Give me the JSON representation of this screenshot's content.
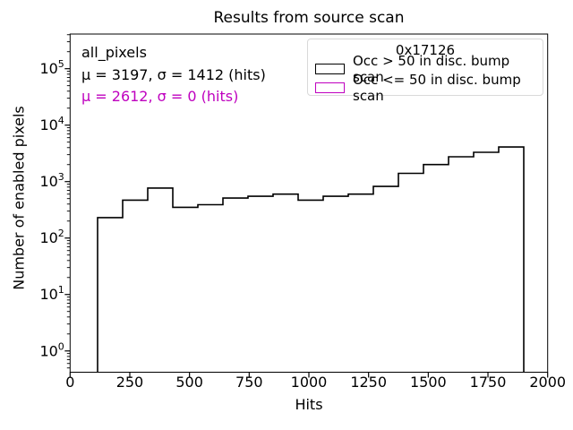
{
  "figure": {
    "title": "Results from source scan",
    "xlabel": "Hits",
    "ylabel": "Number of enabled pixels"
  },
  "annotations": {
    "dataset_label": "all_pixels",
    "stats_black": "μ = 3197, σ = 1412 (hits)",
    "stats_magenta": "μ = 2612, σ = 0 (hits)",
    "black_color": "#000000",
    "magenta_color": "#BF00BF"
  },
  "legend": {
    "title": "0x17126",
    "entries": [
      {
        "label": "Occ > 50 in disc. bump scan",
        "color": "#000000"
      },
      {
        "label": "Occ <= 50 in disc. bump scan",
        "color": "#BF00BF"
      }
    ]
  },
  "chart_data": {
    "type": "bar",
    "histtype": "step",
    "title": "Results from source scan",
    "xlabel": "Hits",
    "ylabel": "Number of enabled pixels",
    "yscale": "log",
    "grid": false,
    "legend_position": "upper right",
    "xlim": [
      0,
      2000
    ],
    "ylim": [
      0.42,
      411000
    ],
    "xticks": [
      0,
      250,
      500,
      750,
      1000,
      1250,
      1500,
      1750,
      2000
    ],
    "ytick_exponents": [
      0,
      1,
      2,
      3,
      4,
      5
    ],
    "series": [
      {
        "name": "Occ > 50 in disc. bump scan",
        "color": "#000000",
        "bin_edges": [
          115,
          220,
          325,
          430,
          535,
          640,
          745,
          850,
          955,
          1060,
          1165,
          1270,
          1375,
          1480,
          1585,
          1690,
          1795,
          1900
        ],
        "counts": [
          230,
          470,
          770,
          350,
          390,
          510,
          550,
          600,
          470,
          550,
          600,
          820,
          1400,
          2000,
          2750,
          3300,
          4100
        ]
      }
    ]
  }
}
